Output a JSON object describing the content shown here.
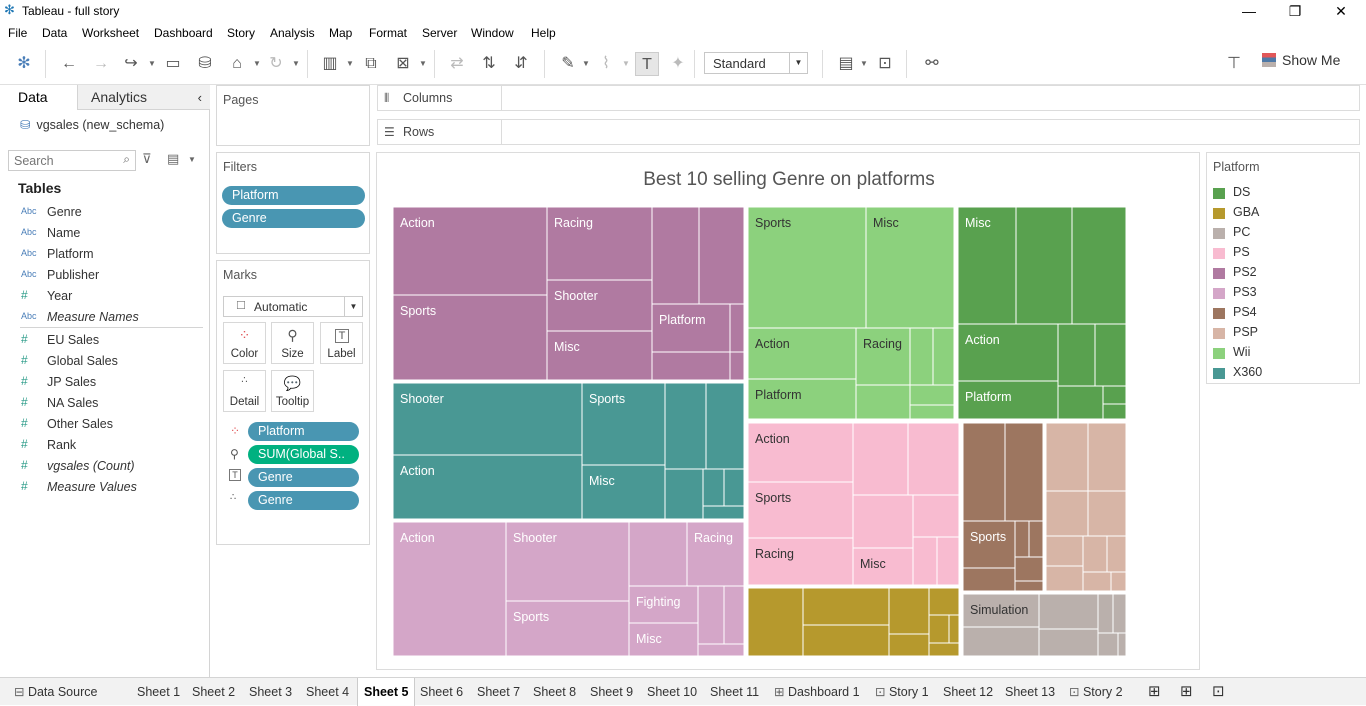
{
  "window": {
    "title": "Tableau - full story"
  },
  "menu": [
    "File",
    "Data",
    "Worksheet",
    "Dashboard",
    "Story",
    "Analysis",
    "Map",
    "Format",
    "Server",
    "Window",
    "Help"
  ],
  "toolbar": {
    "fit_value": "Standard",
    "show_me": "Show Me"
  },
  "left_panel": {
    "tabs": [
      "Data",
      "Analytics"
    ],
    "datasource": "vgsales (new_schema)",
    "search_placeholder": "Search",
    "tables_header": "Tables",
    "fields": [
      {
        "type": "Abc",
        "name": "Genre",
        "italic": false,
        "kind": "dim"
      },
      {
        "type": "Abc",
        "name": "Name",
        "italic": false,
        "kind": "dim"
      },
      {
        "type": "Abc",
        "name": "Platform",
        "italic": false,
        "kind": "dim"
      },
      {
        "type": "Abc",
        "name": "Publisher",
        "italic": false,
        "kind": "dim"
      },
      {
        "type": "#",
        "name": "Year",
        "italic": false,
        "kind": "dim"
      },
      {
        "type": "Abc",
        "name": "Measure Names",
        "italic": true,
        "kind": "dim"
      },
      {
        "type": "#",
        "name": "EU Sales",
        "italic": false,
        "kind": "meas"
      },
      {
        "type": "#",
        "name": "Global Sales",
        "italic": false,
        "kind": "meas"
      },
      {
        "type": "#",
        "name": "JP Sales",
        "italic": false,
        "kind": "meas"
      },
      {
        "type": "#",
        "name": "NA Sales",
        "italic": false,
        "kind": "meas"
      },
      {
        "type": "#",
        "name": "Other Sales",
        "italic": false,
        "kind": "meas"
      },
      {
        "type": "#",
        "name": "Rank",
        "italic": false,
        "kind": "meas"
      },
      {
        "type": "#",
        "name": "vgsales (Count)",
        "italic": true,
        "kind": "meas"
      },
      {
        "type": "#",
        "name": "Measure Values",
        "italic": true,
        "kind": "meas"
      }
    ]
  },
  "pages": {
    "title": "Pages"
  },
  "filters": {
    "title": "Filters",
    "pills": [
      "Platform",
      "Genre"
    ]
  },
  "marks": {
    "title": "Marks",
    "type": "Automatic",
    "buttons": [
      "Color",
      "Size",
      "Label",
      "Detail",
      "Tooltip"
    ],
    "pills": [
      {
        "icon": "color",
        "label": "Platform",
        "style": "blue"
      },
      {
        "icon": "size",
        "label": "SUM(Global S..",
        "style": "green"
      },
      {
        "icon": "label",
        "label": "Genre",
        "style": "blue"
      },
      {
        "icon": "detail",
        "label": "Genre",
        "style": "blue"
      }
    ]
  },
  "shelves": {
    "columns": "Columns",
    "rows": "Rows"
  },
  "legend": {
    "title": "Platform",
    "items": [
      {
        "name": "DS",
        "color": "#59a14f"
      },
      {
        "name": "GBA",
        "color": "#b6992d"
      },
      {
        "name": "PC",
        "color": "#bab0ac"
      },
      {
        "name": "PS",
        "color": "#f8bbd0"
      },
      {
        "name": "PS2",
        "color": "#b07aa1"
      },
      {
        "name": "PS3",
        "color": "#d4a6c8"
      },
      {
        "name": "PS4",
        "color": "#9d7660"
      },
      {
        "name": "PSP",
        "color": "#d7b5a6"
      },
      {
        "name": "Wii",
        "color": "#8cd17d"
      },
      {
        "name": "X360",
        "color": "#499894"
      }
    ]
  },
  "chart_data": {
    "type": "treemap",
    "title": "Best 10 selling Genre on platforms",
    "size_measure": "SUM(Global Sales)",
    "color_field": "Platform",
    "label_field": "Genre",
    "groups": [
      {
        "platform": "PS2",
        "labels": [
          "Action",
          "Racing",
          "Sports",
          "Shooter",
          "Platform",
          "Misc"
        ]
      },
      {
        "platform": "X360",
        "labels": [
          "Shooter",
          "Sports",
          "Action",
          "Misc"
        ]
      },
      {
        "platform": "PS3",
        "labels": [
          "Action",
          "Shooter",
          "Racing",
          "Sports",
          "Fighting",
          "Misc"
        ]
      },
      {
        "platform": "Wii",
        "labels": [
          "Sports",
          "Misc",
          "Action",
          "Racing",
          "Platform"
        ]
      },
      {
        "platform": "DS",
        "labels": [
          "Misc",
          "Action",
          "Platform"
        ]
      },
      {
        "platform": "PS",
        "labels": [
          "Action",
          "Sports",
          "Racing",
          "Misc"
        ]
      },
      {
        "platform": "GBA",
        "labels": []
      },
      {
        "platform": "PS4",
        "labels": [
          "Sports"
        ]
      },
      {
        "platform": "PSP",
        "labels": []
      },
      {
        "platform": "PC",
        "labels": [
          "Simulation"
        ]
      }
    ]
  },
  "bottom_tabs": [
    "Data Source",
    "Sheet 1",
    "Sheet 2",
    "Sheet 3",
    "Sheet 4",
    "Sheet 5",
    "Sheet 6",
    "Sheet 7",
    "Sheet 8",
    "Sheet 9",
    "Sheet 10",
    "Sheet 11",
    "Dashboard 1",
    "Story 1",
    "Sheet 12",
    "Sheet 13",
    "Story 2"
  ],
  "active_tab": "Sheet 5"
}
